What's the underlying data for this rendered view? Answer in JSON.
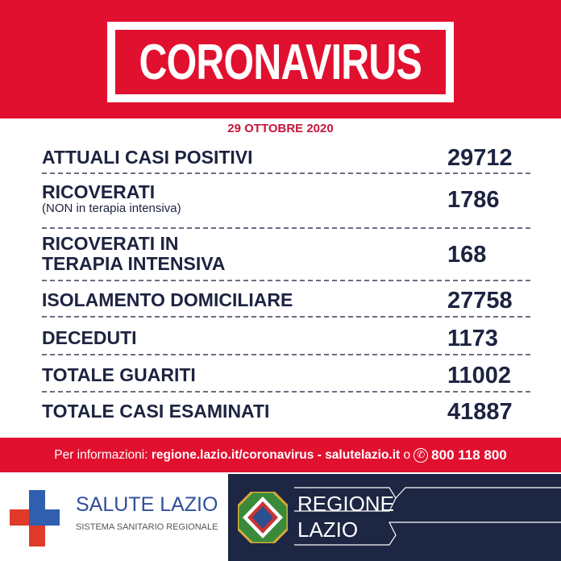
{
  "header": {
    "title": "CORONAVIRUS",
    "date": "29 OTTOBRE 2020"
  },
  "rows": [
    {
      "label": "ATTUALI CASI POSITIVI",
      "value": "29712"
    },
    {
      "label": "RICOVERATI",
      "sublabel": "(NON in terapia intensiva)",
      "value": "1786"
    },
    {
      "label": "RICOVERATI IN",
      "label2": "TERAPIA INTENSIVA",
      "value": "168"
    },
    {
      "label": "ISOLAMENTO DOMICILIARE",
      "value": "27758"
    },
    {
      "label": "DECEDUTI",
      "value": "1173"
    },
    {
      "label": "TOTALE GUARITI",
      "value": "11002"
    },
    {
      "label": "TOTALE CASI ESAMINATI",
      "value": "41887"
    }
  ],
  "info": {
    "prefix": "Per informazioni:",
    "link1": "regione.lazio.it/coronavirus",
    "sep": "-",
    "link2": "salutelazio.it",
    "or": "o",
    "phone_icon": "phone-icon",
    "phone": "800 118 800"
  },
  "footer": {
    "salute_title": "SALUTE LAZIO",
    "salute_sub": "SISTEMA SANITARIO REGIONALE",
    "regione_line1": "REGIONE",
    "regione_line2": "LAZIO"
  },
  "colors": {
    "red": "#e1102f",
    "navy": "#1d2340",
    "blue": "#2f5fae"
  }
}
